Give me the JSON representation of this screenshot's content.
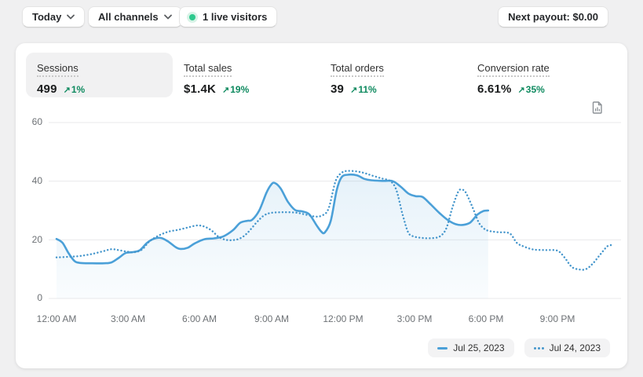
{
  "toolbar": {
    "date_filter": "Today",
    "channel_filter": "All channels",
    "live_visitors": "1 live visitors",
    "next_payout": "Next payout: $0.00"
  },
  "metrics": [
    {
      "label": "Sessions",
      "value": "499",
      "arrow": "↗",
      "trend": "1%",
      "selected": true
    },
    {
      "label": "Total sales",
      "value": "$1.4K",
      "arrow": "↗",
      "trend": "19%",
      "selected": false
    },
    {
      "label": "Total orders",
      "value": "39",
      "arrow": "↗",
      "trend": "11%",
      "selected": false
    },
    {
      "label": "Conversion rate",
      "value": "6.61%",
      "arrow": "↗",
      "trend": "35%",
      "selected": false
    }
  ],
  "chart_data": {
    "type": "line",
    "x_labels": [
      "12:00 AM",
      "3:00 AM",
      "6:00 AM",
      "9:00 AM",
      "12:00 PM",
      "3:00 PM",
      "6:00 PM",
      "9:00 PM"
    ],
    "hours_domain": [
      0,
      24
    ],
    "y_ticks": [
      0,
      20,
      40,
      60
    ],
    "ylim": [
      0,
      60
    ],
    "grid": "horizontal",
    "legend_position": "bottom-right",
    "series": [
      {
        "name": "Jul 25, 2023",
        "style": "solid",
        "color": "#4ba0d8",
        "area_fill": true,
        "points": [
          [
            0,
            20.3
          ],
          [
            0.25,
            19
          ],
          [
            0.5,
            15.5
          ],
          [
            0.75,
            12.8
          ],
          [
            1,
            12.1
          ],
          [
            1.5,
            12
          ],
          [
            2,
            12
          ],
          [
            2.3,
            12.3
          ],
          [
            2.6,
            13.8
          ],
          [
            2.9,
            15.5
          ],
          [
            3.2,
            15.8
          ],
          [
            3.5,
            16.5
          ],
          [
            3.8,
            19
          ],
          [
            4.1,
            20.4
          ],
          [
            4.4,
            20.6
          ],
          [
            4.7,
            19.3
          ],
          [
            5,
            17.5
          ],
          [
            5.2,
            16.9
          ],
          [
            5.5,
            17.3
          ],
          [
            5.8,
            18.8
          ],
          [
            6.2,
            20.2
          ],
          [
            6.6,
            20.5
          ],
          [
            7,
            21.2
          ],
          [
            7.4,
            23.3
          ],
          [
            7.7,
            25.8
          ],
          [
            8,
            26.5
          ],
          [
            8.2,
            26.8
          ],
          [
            8.5,
            30
          ],
          [
            8.8,
            36
          ],
          [
            9,
            38.8
          ],
          [
            9.15,
            39.4
          ],
          [
            9.4,
            37.5
          ],
          [
            9.7,
            33
          ],
          [
            10,
            30.2
          ],
          [
            10.3,
            29.7
          ],
          [
            10.6,
            28.7
          ],
          [
            10.9,
            25
          ],
          [
            11.1,
            22.8
          ],
          [
            11.25,
            22.5
          ],
          [
            11.5,
            26.5
          ],
          [
            11.75,
            37
          ],
          [
            11.95,
            41.3
          ],
          [
            12.2,
            42.2
          ],
          [
            12.6,
            42
          ],
          [
            12.9,
            40.8
          ],
          [
            13.2,
            40.3
          ],
          [
            13.7,
            40.1
          ],
          [
            14.1,
            40
          ],
          [
            14.45,
            38
          ],
          [
            14.75,
            35.8
          ],
          [
            15.05,
            34.9
          ],
          [
            15.35,
            34.6
          ],
          [
            15.7,
            32
          ],
          [
            16.05,
            29.2
          ],
          [
            16.4,
            26.8
          ],
          [
            16.75,
            25.3
          ],
          [
            17.05,
            25.1
          ],
          [
            17.35,
            25.9
          ],
          [
            17.65,
            28.6
          ],
          [
            17.9,
            29.8
          ],
          [
            18.1,
            30
          ]
        ]
      },
      {
        "name": "Jul 24, 2023",
        "style": "dotted",
        "color": "#4596cc",
        "area_fill": false,
        "points": [
          [
            0,
            14
          ],
          [
            0.5,
            14.2
          ],
          [
            1,
            14.5
          ],
          [
            1.5,
            15.2
          ],
          [
            2,
            16.2
          ],
          [
            2.3,
            16.8
          ],
          [
            2.6,
            16.5
          ],
          [
            3,
            15.9
          ],
          [
            3.3,
            15.8
          ],
          [
            3.6,
            16.8
          ],
          [
            3.9,
            19.5
          ],
          [
            4.3,
            21.5
          ],
          [
            4.7,
            22.8
          ],
          [
            5.1,
            23.4
          ],
          [
            5.5,
            24.2
          ],
          [
            5.9,
            24.9
          ],
          [
            6.2,
            24.5
          ],
          [
            6.5,
            23.2
          ],
          [
            6.8,
            21
          ],
          [
            7.1,
            20
          ],
          [
            7.4,
            19.9
          ],
          [
            7.7,
            20.5
          ],
          [
            8,
            22.3
          ],
          [
            8.4,
            26
          ],
          [
            8.7,
            28.3
          ],
          [
            9,
            29.2
          ],
          [
            9.5,
            29.4
          ],
          [
            10,
            29.3
          ],
          [
            10.4,
            28.7
          ],
          [
            10.8,
            28
          ],
          [
            11.1,
            28.2
          ],
          [
            11.4,
            30.5
          ],
          [
            11.7,
            40
          ],
          [
            11.95,
            42.8
          ],
          [
            12.2,
            43.5
          ],
          [
            12.6,
            43.3
          ],
          [
            12.9,
            42.8
          ],
          [
            13.2,
            42
          ],
          [
            13.6,
            41
          ],
          [
            14,
            40
          ],
          [
            14.25,
            37
          ],
          [
            14.5,
            29
          ],
          [
            14.75,
            22.5
          ],
          [
            15,
            21.1
          ],
          [
            15.4,
            20.6
          ],
          [
            15.8,
            20.6
          ],
          [
            16.1,
            21.3
          ],
          [
            16.35,
            24
          ],
          [
            16.6,
            31
          ],
          [
            16.85,
            36.5
          ],
          [
            17,
            37
          ],
          [
            17.15,
            36.3
          ],
          [
            17.45,
            31
          ],
          [
            17.7,
            26
          ],
          [
            17.9,
            24
          ],
          [
            18.1,
            23.1
          ],
          [
            18.5,
            22.6
          ],
          [
            19,
            22.2
          ],
          [
            19.3,
            19
          ],
          [
            19.6,
            17.7
          ],
          [
            20,
            16.7
          ],
          [
            20.5,
            16.5
          ],
          [
            21,
            16.3
          ],
          [
            21.3,
            14
          ],
          [
            21.6,
            10.8
          ],
          [
            21.9,
            9.9
          ],
          [
            22.2,
            10
          ],
          [
            22.5,
            12
          ],
          [
            22.8,
            15
          ],
          [
            23.1,
            17.8
          ],
          [
            23.3,
            18.2
          ]
        ]
      }
    ]
  },
  "colors": {
    "accent_green": "#0e8a5f",
    "live_dot": "#2ec98e",
    "line_solid": "#4ba0d8",
    "line_dotted": "#4596cc",
    "page_bg": "#f0f0f1",
    "card_bg": "#ffffff",
    "selected_metric_bg": "#f1f1f2"
  }
}
